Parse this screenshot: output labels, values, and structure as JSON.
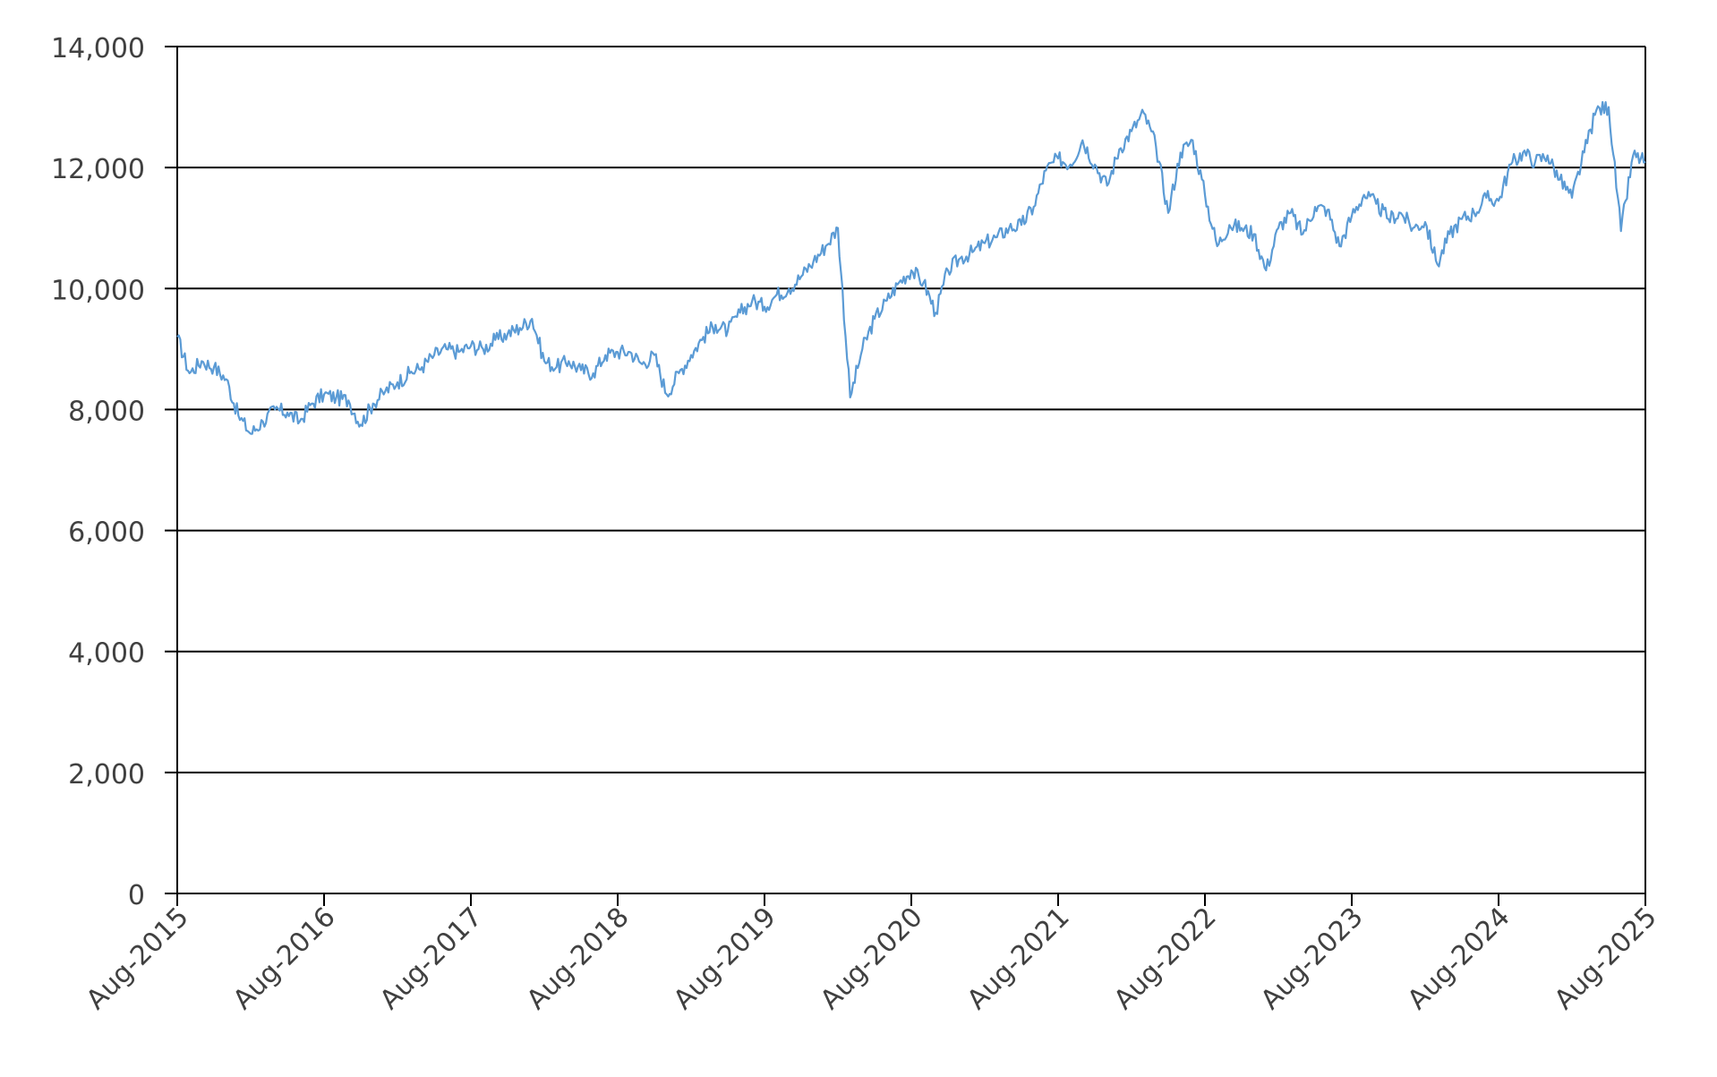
{
  "chart_data": {
    "type": "line",
    "title": "",
    "xlabel": "",
    "ylabel": "",
    "ylim": [
      0,
      14000
    ],
    "yticks": [
      0,
      2000,
      4000,
      6000,
      8000,
      10000,
      12000,
      14000
    ],
    "ytick_labels": [
      "0",
      "2,000",
      "4,000",
      "6,000",
      "8,000",
      "10,000",
      "12,000",
      "14,000"
    ],
    "xlim": [
      "2015-08",
      "2025-08"
    ],
    "xtick_labels": [
      "Aug-2015",
      "Aug-2016",
      "Aug-2017",
      "Aug-2018",
      "Aug-2019",
      "Aug-2020",
      "Aug-2021",
      "Aug-2022",
      "Aug-2023",
      "Aug-2024",
      "Aug-2025"
    ],
    "grid": "horizontal",
    "legend": "none",
    "line_color": "#5b9bd5",
    "series": [
      {
        "values_by_month": [
          [
            "2015-08",
            9200
          ],
          [
            "2015-09",
            8600
          ],
          [
            "2015-10",
            8800
          ],
          [
            "2015-11",
            8700
          ],
          [
            "2015-12",
            8500
          ],
          [
            "2016-01",
            7900
          ],
          [
            "2016-02",
            7600
          ],
          [
            "2016-03",
            7800
          ],
          [
            "2016-04",
            8000
          ],
          [
            "2016-05",
            7950
          ],
          [
            "2016-06",
            7800
          ],
          [
            "2016-07",
            8100
          ],
          [
            "2016-08",
            8250
          ],
          [
            "2016-09",
            8200
          ],
          [
            "2016-10",
            8150
          ],
          [
            "2016-11",
            7750
          ],
          [
            "2016-12",
            8100
          ],
          [
            "2017-01",
            8300
          ],
          [
            "2017-02",
            8450
          ],
          [
            "2017-03",
            8600
          ],
          [
            "2017-04",
            8700
          ],
          [
            "2017-05",
            8900
          ],
          [
            "2017-06",
            9000
          ],
          [
            "2017-07",
            8950
          ],
          [
            "2017-08",
            9050
          ],
          [
            "2017-09",
            9000
          ],
          [
            "2017-10",
            9150
          ],
          [
            "2017-11",
            9250
          ],
          [
            "2017-12",
            9350
          ],
          [
            "2018-01",
            9500
          ],
          [
            "2018-02",
            8800
          ],
          [
            "2018-03",
            8700
          ],
          [
            "2018-04",
            8800
          ],
          [
            "2018-05",
            8650
          ],
          [
            "2018-06",
            8600
          ],
          [
            "2018-07",
            8900
          ],
          [
            "2018-08",
            8950
          ],
          [
            "2018-09",
            8950
          ],
          [
            "2018-10",
            8750
          ],
          [
            "2018-11",
            8900
          ],
          [
            "2018-12",
            8250
          ],
          [
            "2019-01",
            8600
          ],
          [
            "2019-02",
            8900
          ],
          [
            "2019-03",
            9200
          ],
          [
            "2019-04",
            9400
          ],
          [
            "2019-05",
            9300
          ],
          [
            "2019-06",
            9600
          ],
          [
            "2019-07",
            9800
          ],
          [
            "2019-08",
            9700
          ],
          [
            "2019-09",
            9900
          ],
          [
            "2019-10",
            10000
          ],
          [
            "2019-11",
            10200
          ],
          [
            "2019-12",
            10450
          ],
          [
            "2020-01",
            10700
          ],
          [
            "2020-02",
            11000
          ],
          [
            "2020-03",
            8200
          ],
          [
            "2020-04",
            9000
          ],
          [
            "2020-05",
            9500
          ],
          [
            "2020-06",
            9800
          ],
          [
            "2020-07",
            10100
          ],
          [
            "2020-08",
            10300
          ],
          [
            "2020-09",
            10100
          ],
          [
            "2020-10",
            9600
          ],
          [
            "2020-11",
            10300
          ],
          [
            "2020-12",
            10500
          ],
          [
            "2021-01",
            10600
          ],
          [
            "2021-02",
            10750
          ],
          [
            "2021-03",
            10850
          ],
          [
            "2021-04",
            11000
          ],
          [
            "2021-05",
            11050
          ],
          [
            "2021-06",
            11350
          ],
          [
            "2021-07",
            11950
          ],
          [
            "2021-08",
            12150
          ],
          [
            "2021-09",
            12050
          ],
          [
            "2021-10",
            12450
          ],
          [
            "2021-11",
            12050
          ],
          [
            "2021-12",
            11700
          ],
          [
            "2022-01",
            12300
          ],
          [
            "2022-02",
            12600
          ],
          [
            "2022-03",
            12900
          ],
          [
            "2022-04",
            12350
          ],
          [
            "2022-05",
            11250
          ],
          [
            "2022-06",
            12250
          ],
          [
            "2022-07",
            12450
          ],
          [
            "2022-08",
            11550
          ],
          [
            "2022-09",
            10700
          ],
          [
            "2022-10",
            11050
          ],
          [
            "2022-11",
            11000
          ],
          [
            "2022-12",
            10900
          ],
          [
            "2023-01",
            10300
          ],
          [
            "2023-02",
            11000
          ],
          [
            "2023-03",
            11250
          ],
          [
            "2023-04",
            10900
          ],
          [
            "2023-05",
            11350
          ],
          [
            "2023-06",
            11300
          ],
          [
            "2023-07",
            10700
          ],
          [
            "2023-08",
            11200
          ],
          [
            "2023-09",
            11550
          ],
          [
            "2023-10",
            11400
          ],
          [
            "2023-11",
            11150
          ],
          [
            "2023-12",
            11250
          ],
          [
            "2024-01",
            11000
          ],
          [
            "2024-02",
            11100
          ],
          [
            "2024-03",
            10400
          ],
          [
            "2024-04",
            10900
          ],
          [
            "2024-05",
            11150
          ],
          [
            "2024-06",
            11250
          ],
          [
            "2024-07",
            11500
          ],
          [
            "2024-08",
            11450
          ],
          [
            "2024-09",
            12050
          ],
          [
            "2024-10",
            12250
          ],
          [
            "2024-11",
            12100
          ],
          [
            "2024-12",
            12200
          ],
          [
            "2025-01",
            11800
          ],
          [
            "2025-02",
            11500
          ],
          [
            "2025-03",
            12250
          ],
          [
            "2025-04",
            12950
          ],
          [
            "2025-05",
            13000
          ],
          [
            "2025-06",
            10950
          ],
          [
            "2025-07",
            12200
          ],
          [
            "2025-08",
            12100
          ]
        ]
      }
    ]
  }
}
